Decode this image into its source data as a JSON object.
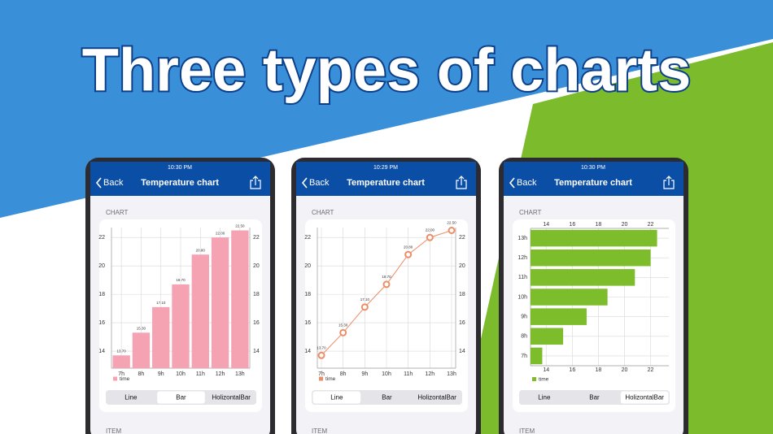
{
  "title": "Three types of charts",
  "screens": [
    {
      "time": "10:30 PM",
      "back": "Back",
      "nav_title": "Temperature chart",
      "section": "CHART",
      "segments": [
        "Line",
        "Bar",
        "HolizontalBar"
      ],
      "selected": 1,
      "section2": "ITEM"
    },
    {
      "time": "10:29 PM",
      "back": "Back",
      "nav_title": "Temperature chart",
      "section": "CHART",
      "segments": [
        "Line",
        "Bar",
        "HolizontalBar"
      ],
      "selected": 0,
      "section2": "ITEM"
    },
    {
      "time": "10:30 PM",
      "back": "Back",
      "nav_title": "Temperature chart",
      "section": "CHART",
      "segments": [
        "Line",
        "Bar",
        "HolizontalBar"
      ],
      "selected": 2,
      "section2": "ITEM"
    }
  ],
  "chart_data": [
    {
      "type": "bar",
      "categories": [
        "7h",
        "8h",
        "9h",
        "10h",
        "11h",
        "12h",
        "13h"
      ],
      "series": [
        {
          "name": "time",
          "color": "#f5a3b3",
          "values": [
            13.7,
            15.3,
            17.1,
            18.7,
            20.8,
            22.0,
            22.5
          ],
          "value_labels": [
            "13.70",
            "15.30",
            "17.10",
            "18.70",
            "20.80",
            "22.00",
            "22.50"
          ]
        }
      ],
      "ylim": [
        12.8,
        22.7
      ],
      "yticks": [
        14,
        16,
        18,
        20,
        22
      ],
      "grid": true
    },
    {
      "type": "line",
      "categories": [
        "7h",
        "8h",
        "9h",
        "10h",
        "11h",
        "12h",
        "13h"
      ],
      "series": [
        {
          "name": "time",
          "color": "#ec8d66",
          "values": [
            13.7,
            15.3,
            17.1,
            18.7,
            20.8,
            22.0,
            22.5
          ],
          "value_labels": [
            "13.70",
            "15.30",
            "17.10",
            "18.70",
            "20.80",
            "22.00",
            "22.50"
          ]
        }
      ],
      "ylim": [
        12.8,
        22.7
      ],
      "yticks": [
        14,
        16,
        18,
        20,
        22
      ],
      "grid": true
    },
    {
      "type": "hbar",
      "categories": [
        "7h",
        "8h",
        "9h",
        "10h",
        "11h",
        "12h",
        "13h"
      ],
      "series": [
        {
          "name": "time",
          "color": "#7dbd2b",
          "values": [
            13.7,
            15.3,
            17.1,
            18.7,
            20.8,
            22.0,
            22.5
          ]
        }
      ],
      "xlim": [
        12.8,
        23.4
      ],
      "xticks": [
        14,
        16,
        18,
        20,
        22
      ],
      "grid": true
    }
  ]
}
